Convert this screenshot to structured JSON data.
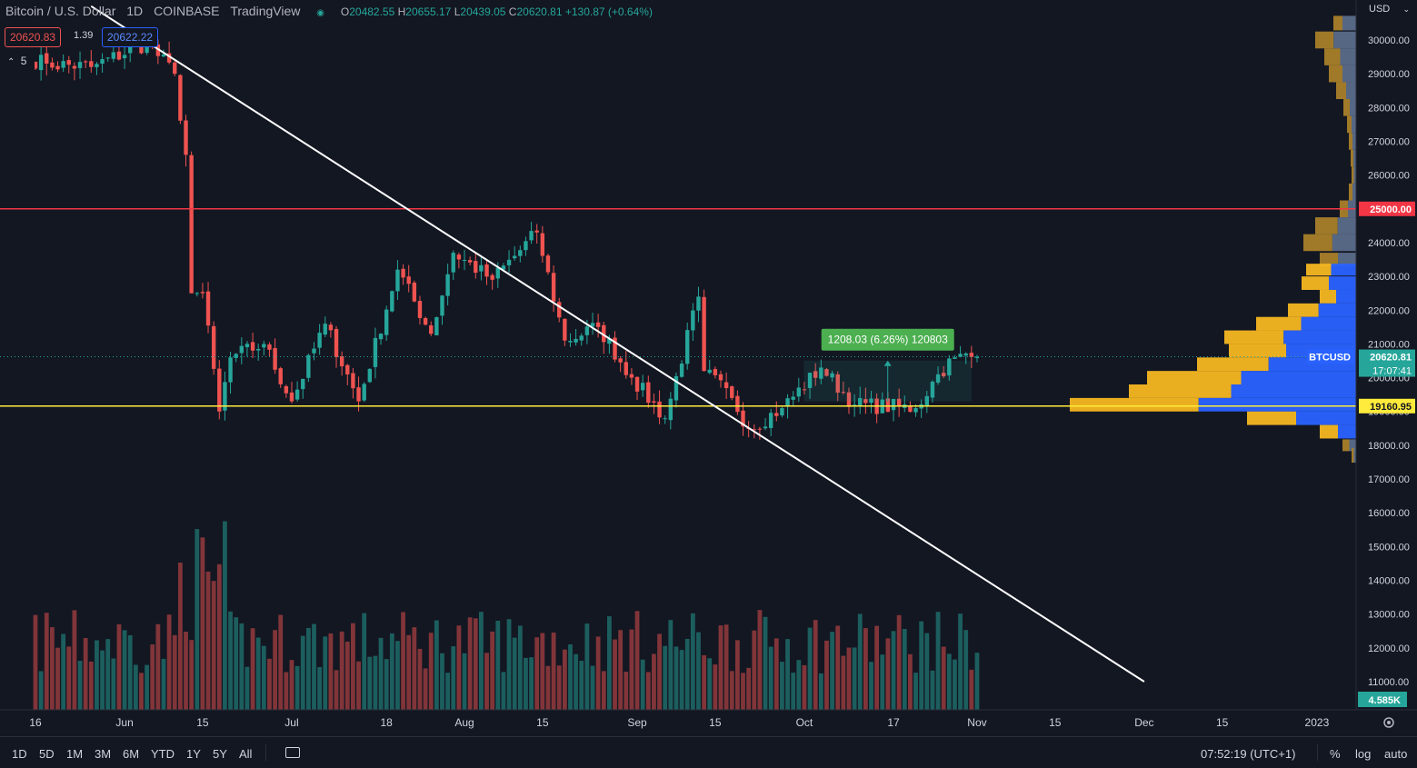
{
  "header": {
    "symbol_title": "Bitcoin / U.S. Dollar",
    "interval": "1D",
    "exchange": "COINBASE",
    "platform": "TradingView",
    "o_label": "O",
    "o_value": "20482.55",
    "h_label": "H",
    "h_value": "20655.17",
    "l_label": "L",
    "l_value": "20439.05",
    "c_label": "C",
    "c_value": "20620.81",
    "change": "+130.87 (+0.64%)"
  },
  "trade_panel": {
    "sell_price": "20620.83",
    "spread": "1.39",
    "buy_price": "20622.22",
    "indicators_count": "5"
  },
  "price_axis": {
    "currency_label": "USD",
    "ticks": [
      "30000.00",
      "29000.00",
      "28000.00",
      "27000.00",
      "26000.00",
      "25000.00",
      "24000.00",
      "23000.00",
      "22000.00",
      "21000.00",
      "20000.00",
      "19000.00",
      "18000.00",
      "17000.00",
      "16000.00",
      "15000.00",
      "14000.00",
      "13000.00",
      "12000.00",
      "11000.00"
    ],
    "resistance_label": "25000.00",
    "support_label": "19160.95",
    "symbol_tag": "BTCUSD",
    "last_price_label": "20620.81",
    "countdown": "17:07:41",
    "volume_label": "4.585K"
  },
  "measure_tool": {
    "label": "1208.03 (6.26%) 120803"
  },
  "time_axis": {
    "ticks": [
      "16",
      "Jun",
      "15",
      "Jul",
      "18",
      "Aug",
      "15",
      "Sep",
      "15",
      "Oct",
      "17",
      "Nov",
      "15",
      "Dec",
      "15",
      "2023"
    ]
  },
  "bottom_bar": {
    "ranges": [
      "1D",
      "5D",
      "1M",
      "3M",
      "6M",
      "YTD",
      "1Y",
      "5Y",
      "All"
    ],
    "clock": "07:52:19 (UTC+1)",
    "percent": "%",
    "log": "log",
    "auto": "auto"
  },
  "colors": {
    "background": "#131722",
    "up": "#26a69a",
    "down": "#ef5350",
    "resistance": "#f23645",
    "support": "#ffeb3b",
    "trendline": "#ffffff",
    "vp_blue": "#2962ff",
    "vp_gold": "#f5b721",
    "vp_bronze": "#a8802a"
  },
  "chart_data": {
    "type": "candlestick",
    "symbol": "BTCUSD",
    "timeframe": "1D",
    "y_range": [
      16000,
      31000
    ],
    "horizontal_lines": [
      {
        "price": 25000,
        "color": "red"
      },
      {
        "price": 19160.95,
        "color": "yellow"
      }
    ],
    "trendline": {
      "from": [
        "2022-05-26",
        31000
      ],
      "to": [
        "2022-12-01",
        11000
      ]
    },
    "measure": {
      "from_price": 19300,
      "to_price": 20508,
      "change": 1208.03,
      "percent": 6.26,
      "start_date": "2022-10-05",
      "end_date": "2022-11-01"
    },
    "anchors": [
      {
        "date": "2022-05-18",
        "close": 29300
      },
      {
        "date": "2022-05-26",
        "close": 29200
      },
      {
        "date": "2022-06-05",
        "close": 29900
      },
      {
        "date": "2022-06-10",
        "close": 29000
      },
      {
        "date": "2022-06-12",
        "close": 26600
      },
      {
        "date": "2022-06-13",
        "close": 22500
      },
      {
        "date": "2022-06-15",
        "close": 22500
      },
      {
        "date": "2022-06-18",
        "close": 19000
      },
      {
        "date": "2022-06-20",
        "close": 20600
      },
      {
        "date": "2022-06-26",
        "close": 21000
      },
      {
        "date": "2022-07-01",
        "close": 19300
      },
      {
        "date": "2022-07-07",
        "close": 21600
      },
      {
        "date": "2022-07-13",
        "close": 19300
      },
      {
        "date": "2022-07-20",
        "close": 23200
      },
      {
        "date": "2022-07-26",
        "close": 21300
      },
      {
        "date": "2022-07-30",
        "close": 23700
      },
      {
        "date": "2022-08-06",
        "close": 22900
      },
      {
        "date": "2022-08-14",
        "close": 24300
      },
      {
        "date": "2022-08-19",
        "close": 21100
      },
      {
        "date": "2022-08-25",
        "close": 21500
      },
      {
        "date": "2022-08-31",
        "close": 20000
      },
      {
        "date": "2022-09-06",
        "close": 18800
      },
      {
        "date": "2022-09-12",
        "close": 22400
      },
      {
        "date": "2022-09-13",
        "close": 20200
      },
      {
        "date": "2022-09-18",
        "close": 19400
      },
      {
        "date": "2022-09-21",
        "close": 18500
      },
      {
        "date": "2022-09-27",
        "close": 19100
      },
      {
        "date": "2022-10-04",
        "close": 20300
      },
      {
        "date": "2022-10-10",
        "close": 19200
      },
      {
        "date": "2022-10-21",
        "close": 19100
      },
      {
        "date": "2022-10-25",
        "close": 20100
      },
      {
        "date": "2022-10-28",
        "close": 20600
      },
      {
        "date": "2022-11-01",
        "close": 20620
      }
    ],
    "volume_profile": [
      {
        "price": 30500,
        "total": 25,
        "up_share": 0.6
      },
      {
        "price": 30000,
        "total": 45,
        "up_share": 0.55
      },
      {
        "price": 29500,
        "total": 35,
        "up_share": 0.5
      },
      {
        "price": 29000,
        "total": 30,
        "up_share": 0.5
      },
      {
        "price": 28500,
        "total": 22,
        "up_share": 0.5
      },
      {
        "price": 28000,
        "total": 14,
        "up_share": 0.5
      },
      {
        "price": 27500,
        "total": 10,
        "up_share": 0.5
      },
      {
        "price": 27000,
        "total": 8,
        "up_share": 0.5
      },
      {
        "price": 26500,
        "total": 6,
        "up_share": 0.5
      },
      {
        "price": 26000,
        "total": 5,
        "up_share": 0.5
      },
      {
        "price": 25500,
        "total": 8,
        "up_share": 0.5
      },
      {
        "price": 25000,
        "total": 18,
        "up_share": 0.5
      },
      {
        "price": 24500,
        "total": 45,
        "up_share": 0.45
      },
      {
        "price": 24000,
        "total": 58,
        "up_share": 0.45
      },
      {
        "price": 23500,
        "total": 40,
        "up_share": 0.5
      },
      {
        "price": 23200,
        "total": 55,
        "up_share": 0.5
      },
      {
        "price": 22800,
        "total": 60,
        "up_share": 0.5
      },
      {
        "price": 22400,
        "total": 40,
        "up_share": 0.55
      },
      {
        "price": 22000,
        "total": 75,
        "up_share": 0.55
      },
      {
        "price": 21600,
        "total": 110,
        "up_share": 0.55
      },
      {
        "price": 21200,
        "total": 145,
        "up_share": 0.55
      },
      {
        "price": 20800,
        "total": 140,
        "up_share": 0.55
      },
      {
        "price": 20400,
        "total": 175,
        "up_share": 0.55
      },
      {
        "price": 20000,
        "total": 230,
        "up_share": 0.55
      },
      {
        "price": 19600,
        "total": 250,
        "up_share": 0.55
      },
      {
        "price": 19200,
        "total": 315,
        "up_share": 0.55
      },
      {
        "price": 18800,
        "total": 120,
        "up_share": 0.55
      },
      {
        "price": 18400,
        "total": 40,
        "up_share": 0.5
      },
      {
        "price": 18000,
        "total": 15,
        "up_share": 0.5
      },
      {
        "price": 17700,
        "total": 5,
        "up_share": 0.5
      }
    ]
  }
}
